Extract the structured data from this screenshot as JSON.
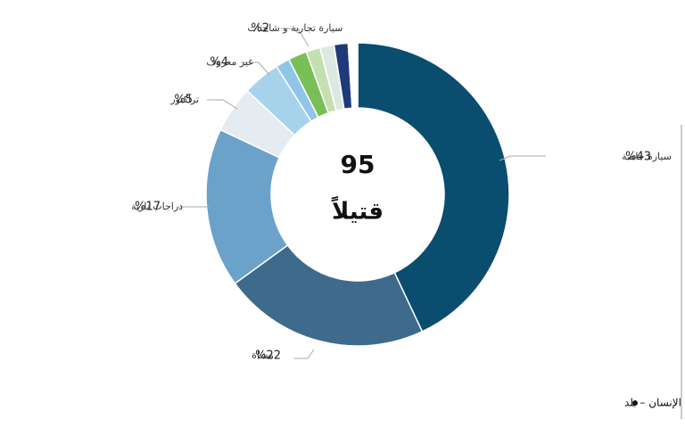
{
  "chart_data": {
    "type": "donut",
    "center_title": "95",
    "center_subtitle": "قتيلاً",
    "categories": [
      "سيارة خاصة",
      "مشاة",
      "دراجات نارية",
      "تراكتور",
      "غير معروف",
      null,
      "سيارة تجارية و شاحنات",
      null,
      null,
      null,
      null
    ],
    "values": [
      43,
      22,
      17,
      5,
      4,
      1.5,
      2,
      1.5,
      1.5,
      1.5,
      1
    ],
    "value_labels": [
      "%43",
      "%22",
      "%17",
      "%5",
      "%4",
      null,
      "%2",
      null,
      null,
      null,
      null
    ],
    "colors": [
      "#0b4d6e",
      "#3e6a8b",
      "#6aa2c9",
      "#e4ecf1",
      "#a7d2ec",
      "#8fc6e8",
      "#79bf58",
      "#c4e0b2",
      "#dde8e3",
      "#1f3a7a",
      "#ffffff"
    ],
    "source": "المصدر : منظمة أطباء من أجل حقوق الإنسان – بلد"
  }
}
